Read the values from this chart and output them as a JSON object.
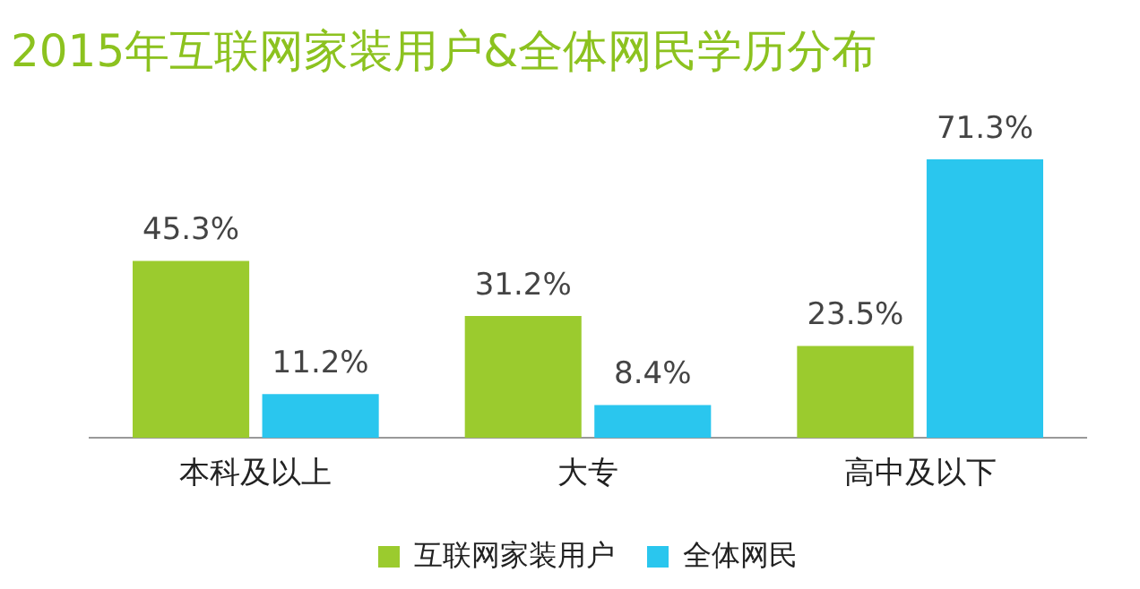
{
  "chart_data": {
    "type": "bar",
    "title": "2015年互联网家装用户&全体网民学历分布",
    "categories": [
      "本科及以上",
      "大专",
      "高中及以下"
    ],
    "series": [
      {
        "name": "互联网家装用户",
        "color": "#9bcb2e",
        "values": [
          45.3,
          31.2,
          23.5
        ],
        "value_labels": [
          "45.3%",
          "31.2%",
          "23.5%"
        ]
      },
      {
        "name": "全体网民",
        "color": "#2ac6ee",
        "values": [
          11.2,
          8.4,
          71.3
        ],
        "value_labels": [
          "11.2%",
          "8.4%",
          "71.3%"
        ]
      }
    ],
    "legend": "bottom",
    "grid": false
  }
}
